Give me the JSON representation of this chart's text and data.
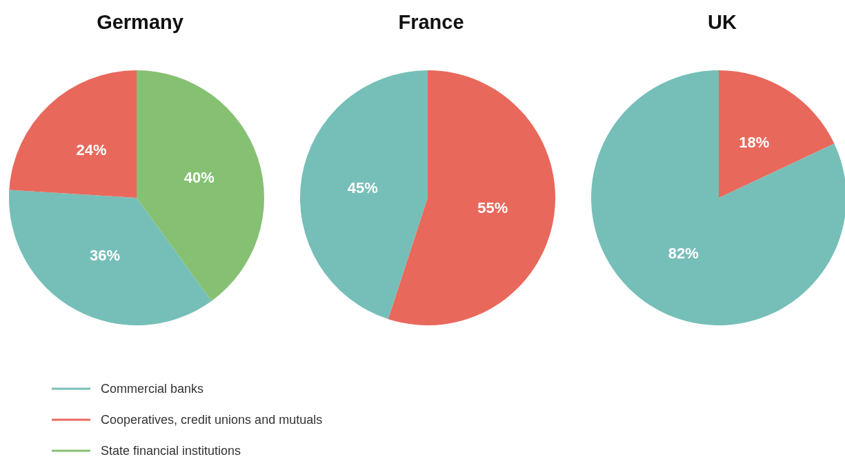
{
  "chart_data": {
    "type": "pie",
    "categories": [
      "Commercial banks",
      "Cooperatives, credit unions and mutuals",
      "State financial institutions"
    ],
    "colors": [
      "#76bfb8",
      "#e8685b",
      "#86c073"
    ],
    "legend": "bottom left",
    "series": [
      {
        "name": "Germany",
        "values": [
          36,
          24,
          40
        ],
        "value_labels": [
          "36%",
          "24%",
          "40%"
        ]
      },
      {
        "name": "France",
        "values": [
          45,
          55,
          null
        ],
        "value_labels": [
          "45%",
          "55%",
          null
        ]
      },
      {
        "name": "UK",
        "values": [
          82,
          18,
          null
        ],
        "value_labels": [
          "82%",
          "18%",
          null
        ]
      }
    ]
  }
}
